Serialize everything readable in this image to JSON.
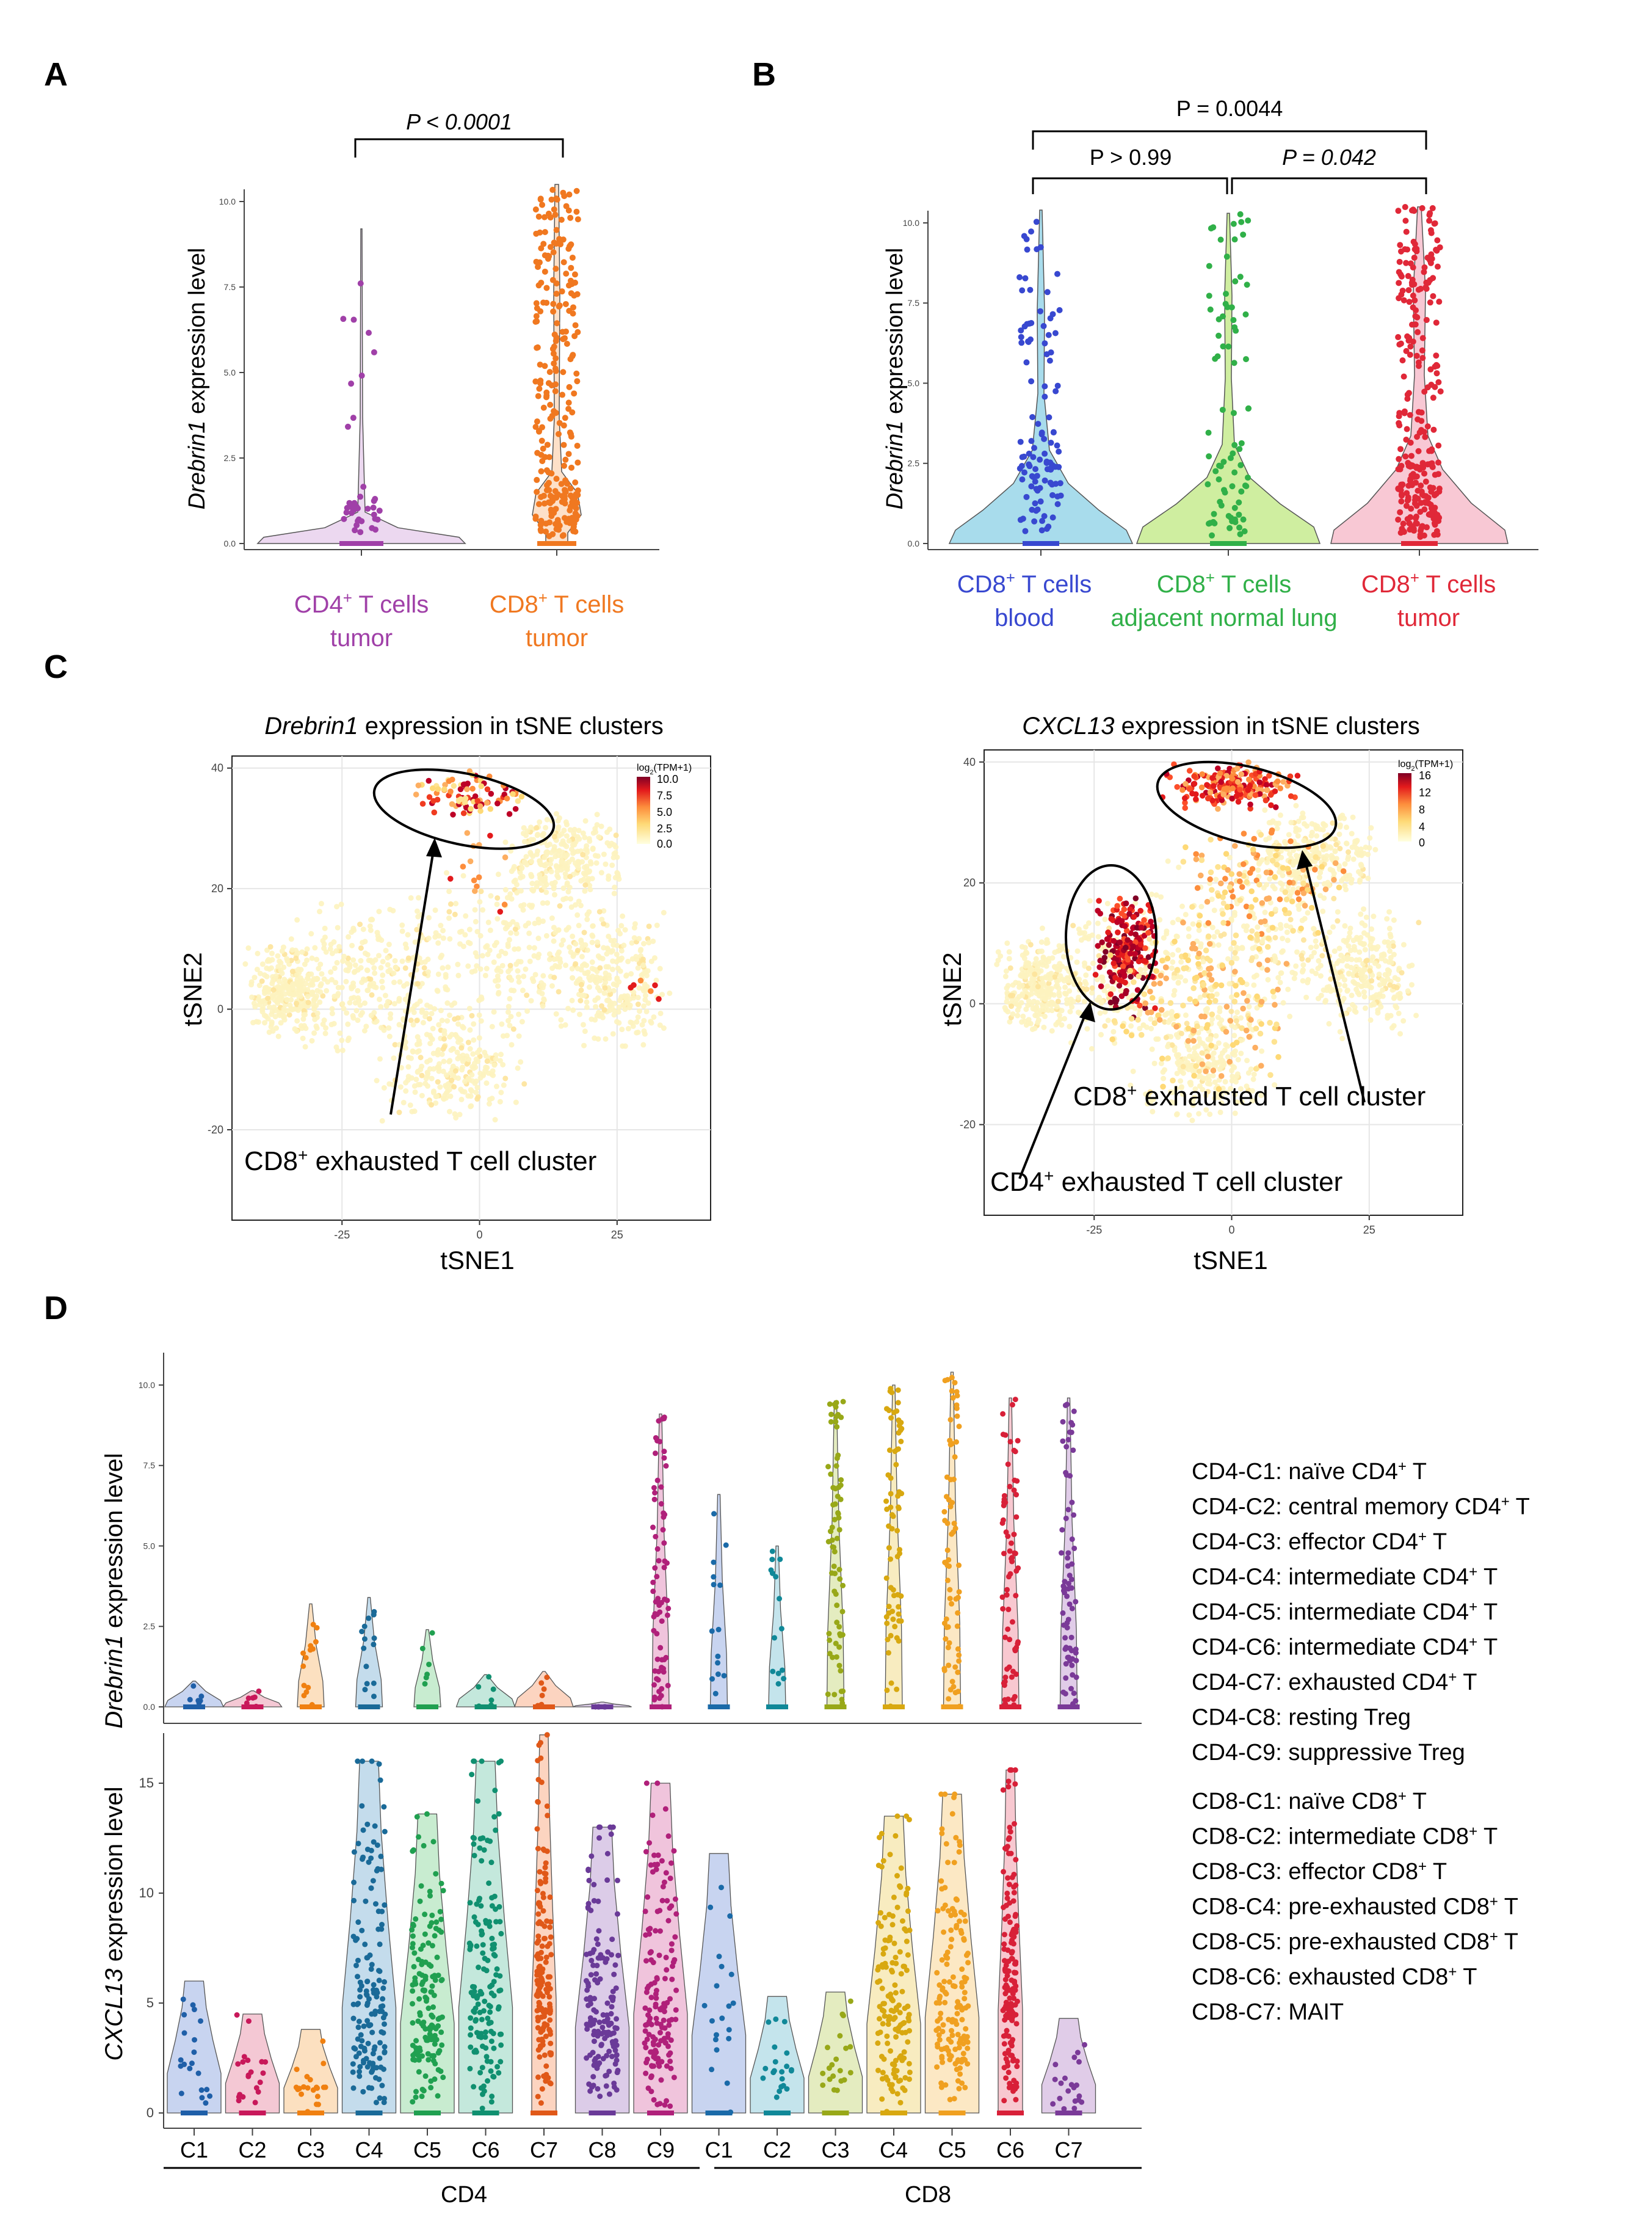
{
  "panels": {
    "A": {
      "letter": "A",
      "p_label": "P < 0.0001",
      "ylabel_italic": "Drebrin1",
      "ylabel_rest": " expression level",
      "yticks": [
        "0.0",
        "2.5",
        "5.0",
        "7.5",
        "10.0"
      ],
      "groups": [
        {
          "line1": "CD4",
          "sup": "+",
          "line1b": " T cells",
          "line2": "tumor",
          "color": "#a040a8"
        },
        {
          "line1": "CD8",
          "sup": "+",
          "line1b": " T cells",
          "line2": "tumor",
          "color": "#f07820"
        }
      ]
    },
    "B": {
      "letter": "B",
      "p_top": "P = 0.0044",
      "p_left": "P > 0.99",
      "p_right": "P = 0.042",
      "ylabel_italic": "Drebrin1",
      "ylabel_rest": " expression level",
      "yticks": [
        "0.0",
        "2.5",
        "5.0",
        "7.5",
        "10.0"
      ],
      "groups": [
        {
          "line1": "CD8",
          "sup": "+",
          "line1b": " T cells",
          "line2": "blood",
          "color": "#3848d0",
          "fill": "#a8dcec"
        },
        {
          "line1": "CD8",
          "sup": "+",
          "line1b": " T cells",
          "line2": "adjacent  normal  lung",
          "color": "#30b048",
          "fill": "#cfeea0"
        },
        {
          "line1": "CD8",
          "sup": "+",
          "line1b": " T cells",
          "line2": "tumor",
          "color": "#e02838",
          "fill": "#f8c8d4"
        }
      ]
    },
    "C": {
      "letter": "C",
      "left": {
        "title_italic": "Drebrin1",
        "title_rest": " expression  in tSNE clusters",
        "legend_title": "log2(TPM+1)",
        "legend_ticks": [
          "10.0",
          "7.5",
          "5.0",
          "2.5",
          "0.0"
        ],
        "annotation": "CD8",
        "annotation_sup": "+",
        "annotation_rest": " exhausted T cell cluster"
      },
      "right": {
        "title_italic": "CXCL13",
        "title_rest": " expression  in tSNE clusters",
        "legend_title": "log2(TPM+1)",
        "legend_ticks": [
          "16",
          "12",
          "8",
          "4",
          "0"
        ],
        "annotation_cd8": "CD8",
        "annotation_cd8_sup": "+",
        "annotation_cd8_rest": " exhausted T cell cluster",
        "annotation_cd4": "CD4",
        "annotation_cd4_sup": "+",
        "annotation_cd4_rest": " exhausted T cell cluster"
      },
      "xlabel": "tSNE1",
      "ylabel": "tSNE2",
      "xticks": [
        "-25",
        "0",
        "25"
      ],
      "yticks": [
        "40",
        "20",
        "0",
        "-20"
      ]
    },
    "D": {
      "letter": "D",
      "top_ylabel_italic": "Drebrin1",
      "top_ylabel_rest": " expression level",
      "top_yticks": [
        "0.0",
        "2.5",
        "5.0",
        "7.5",
        "10.0"
      ],
      "bottom_ylabel_italic": "CXCL13",
      "bottom_ylabel_rest": " expression level",
      "bottom_yticks": [
        "0",
        "5",
        "10",
        "15"
      ],
      "cluster_labels": [
        "C1",
        "C2",
        "C3",
        "C4",
        "C5",
        "C6",
        "C7",
        "C8",
        "C9",
        "C1",
        "C2",
        "C3",
        "C4",
        "C5",
        "C6",
        "C7"
      ],
      "group_cd4": "CD4",
      "group_cd8": "CD8",
      "legend_cd4": [
        {
          "key": "CD4-C1",
          "desc": "naïve CD4",
          "sup": "+",
          "tail": " T"
        },
        {
          "key": "CD4-C2",
          "desc": "central memory CD4",
          "sup": "+",
          "tail": " T"
        },
        {
          "key": "CD4-C3",
          "desc": "effector CD4",
          "sup": "+",
          "tail": " T"
        },
        {
          "key": "CD4-C4",
          "desc": "intermediate CD4",
          "sup": "+",
          "tail": " T"
        },
        {
          "key": "CD4-C5",
          "desc": "intermediate CD4",
          "sup": "+",
          "tail": " T"
        },
        {
          "key": "CD4-C6",
          "desc": "intermediate CD4",
          "sup": "+",
          "tail": " T"
        },
        {
          "key": "CD4-C7",
          "desc": "exhausted CD4",
          "sup": "+",
          "tail": " T"
        },
        {
          "key": "CD4-C8",
          "desc": "resting Treg",
          "sup": "",
          "tail": ""
        },
        {
          "key": "CD4-C9",
          "desc": "suppressive Treg",
          "sup": "",
          "tail": ""
        }
      ],
      "legend_cd8": [
        {
          "key": "CD8-C1",
          "desc": "naïve CD8",
          "sup": "+",
          "tail": " T"
        },
        {
          "key": "CD8-C2",
          "desc": "intermediate CD8",
          "sup": "+",
          "tail": " T"
        },
        {
          "key": "CD8-C3",
          "desc": "effector CD8",
          "sup": "+",
          "tail": " T"
        },
        {
          "key": "CD8-C4",
          "desc": "pre-exhausted CD8",
          "sup": "+",
          "tail": " T"
        },
        {
          "key": "CD8-C5",
          "desc": "pre-exhausted CD8",
          "sup": "+",
          "tail": " T"
        },
        {
          "key": "CD8-C6",
          "desc": "exhausted CD8",
          "sup": "+",
          "tail": " T"
        },
        {
          "key": "CD8-C7",
          "desc": "MAIT",
          "sup": "",
          "tail": ""
        }
      ]
    }
  },
  "chart_data": [
    {
      "type": "violin",
      "panel": "A",
      "categories": [
        "CD4+ T cells tumor",
        "CD8+ T cells tumor"
      ],
      "ylim": [
        0,
        10
      ],
      "series": [
        {
          "max": 9.2,
          "dense_max": 1.5
        },
        {
          "max": 10.5,
          "dense_max": 1.8
        }
      ]
    },
    {
      "type": "violin",
      "panel": "B",
      "categories": [
        "CD8+ T cells blood",
        "CD8+ T cells adjacent normal lung",
        "CD8+ T cells tumor"
      ],
      "ylim": [
        0,
        10
      ],
      "series": [
        {
          "max": 10.4,
          "dense_max": 2.6
        },
        {
          "max": 10.3,
          "dense_max": 2.4
        },
        {
          "max": 10.5,
          "dense_max": 3.5
        }
      ]
    },
    {
      "type": "scatter",
      "panel": "C-left",
      "xlim": [
        -45,
        42
      ],
      "ylim": [
        -35,
        42
      ],
      "color_range": [
        0,
        10
      ]
    },
    {
      "type": "scatter",
      "panel": "C-right",
      "xlim": [
        -45,
        42
      ],
      "ylim": [
        -35,
        42
      ],
      "color_range": [
        0,
        16
      ]
    },
    {
      "type": "violin",
      "panel": "D-top",
      "ylim": [
        0,
        10
      ],
      "categories": [
        "CD4-C1",
        "CD4-C2",
        "CD4-C3",
        "CD4-C4",
        "CD4-C5",
        "CD4-C6",
        "CD4-C7",
        "CD4-C8",
        "CD4-C9",
        "CD8-C1",
        "CD8-C2",
        "CD8-C3",
        "CD8-C4",
        "CD8-C5",
        "CD8-C6",
        "CD8-C7"
      ],
      "series": [
        {
          "max": 0.8,
          "color": "#1f5fa8",
          "fill": "#c8d4f0"
        },
        {
          "max": 0.5,
          "color": "#c8185a",
          "fill": "#f4c8d4"
        },
        {
          "max": 3.2,
          "color": "#f08010",
          "fill": "#fce0c0"
        },
        {
          "max": 3.4,
          "color": "#1a6a98",
          "fill": "#c4dcec"
        },
        {
          "max": 2.4,
          "color": "#20a050",
          "fill": "#c8ecd0"
        },
        {
          "max": 1.0,
          "color": "#109070",
          "fill": "#c4e8dc"
        },
        {
          "max": 1.1,
          "color": "#e05818",
          "fill": "#fcd4c0"
        },
        {
          "max": 0.0,
          "color": "#6a3a98",
          "fill": "#dccce8"
        },
        {
          "max": 9.1,
          "color": "#b0207a",
          "fill": "#f0c4dc"
        },
        {
          "max": 6.6,
          "color": "#1a6aa8",
          "fill": "#c8d4f0"
        },
        {
          "max": 5.0,
          "color": "#108898",
          "fill": "#c4e4ec"
        },
        {
          "max": 9.5,
          "color": "#98a818",
          "fill": "#e4ecc0"
        },
        {
          "max": 10.0,
          "color": "#d8a810",
          "fill": "#f8ecc0"
        },
        {
          "max": 10.4,
          "color": "#f0a020",
          "fill": "#fce8c4"
        },
        {
          "max": 9.6,
          "color": "#d82038",
          "fill": "#f8c8d0"
        },
        {
          "max": 9.6,
          "color": "#7a3a98",
          "fill": "#e0cce8"
        }
      ]
    },
    {
      "type": "violin",
      "panel": "D-bottom",
      "ylim": [
        0,
        17
      ],
      "categories": [
        "CD4-C1",
        "CD4-C2",
        "CD4-C3",
        "CD4-C4",
        "CD4-C5",
        "CD4-C6",
        "CD4-C7",
        "CD4-C8",
        "CD4-C9",
        "CD8-C1",
        "CD8-C2",
        "CD8-C3",
        "CD8-C4",
        "CD8-C5",
        "CD8-C6",
        "CD8-C7"
      ],
      "series": [
        {
          "max": 6.0
        },
        {
          "max": 4.5
        },
        {
          "max": 3.8
        },
        {
          "max": 16.0
        },
        {
          "max": 13.6
        },
        {
          "max": 16.0
        },
        {
          "max": 17.2
        },
        {
          "max": 13.0
        },
        {
          "max": 15.0
        },
        {
          "max": 11.8
        },
        {
          "max": 5.3
        },
        {
          "max": 5.5
        },
        {
          "max": 13.5
        },
        {
          "max": 14.5
        },
        {
          "max": 15.6
        },
        {
          "max": 4.3
        }
      ]
    }
  ]
}
